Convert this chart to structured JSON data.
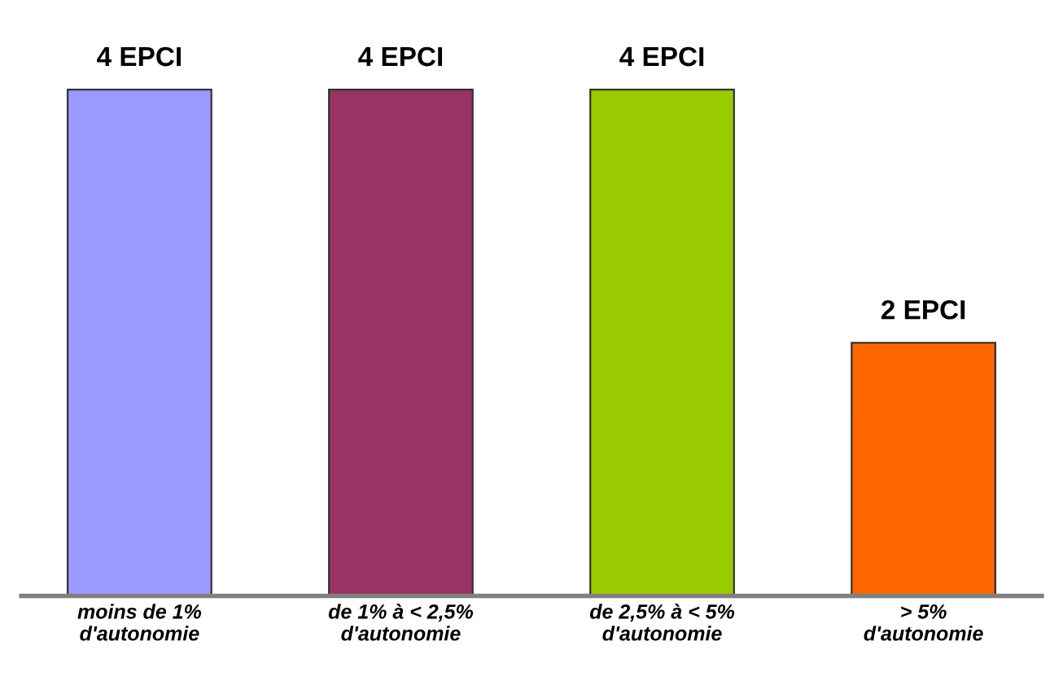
{
  "chart_data": {
    "type": "bar",
    "categories": [
      "moins de 1%\nd'autonomie",
      "de 1% à < 2,5%\nd'autonomie",
      "de 2,5% à < 5%\nd'autonomie",
      "> 5%\nd'autonomie"
    ],
    "values": [
      4,
      4,
      4,
      2
    ],
    "colors": [
      "#9999ff",
      "#993366",
      "#99cc00",
      "#ff6600"
    ],
    "value_labels": [
      "4 EPCI",
      "4 EPCI",
      "4 EPCI",
      "2 EPCI"
    ],
    "grid": false,
    "legend": false,
    "tick_labels": "x"
  }
}
